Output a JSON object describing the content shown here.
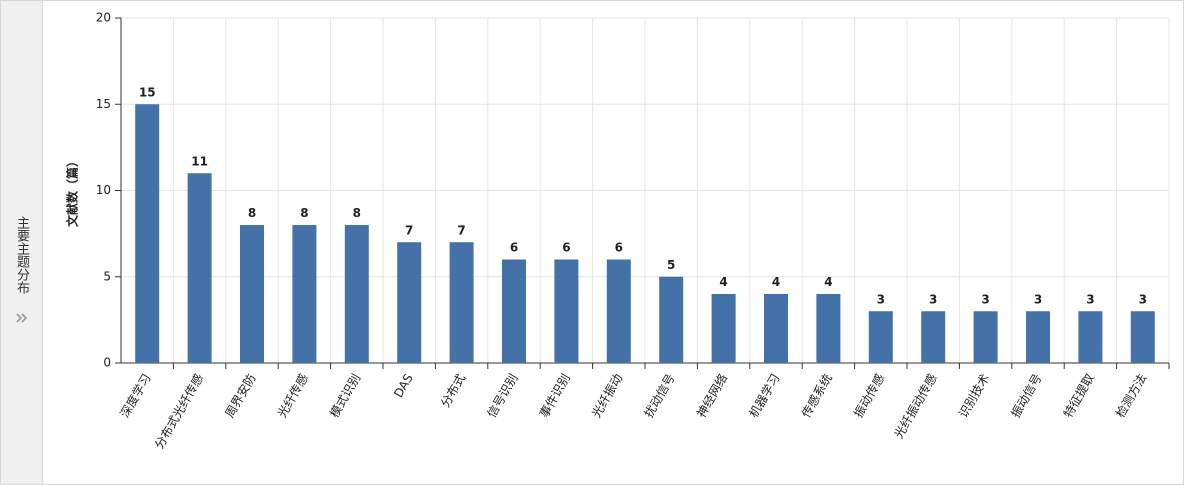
{
  "sidebar": {
    "title": "主要主题分布"
  },
  "chart_data": {
    "type": "bar",
    "y_label": "文献数（篇）",
    "categories": [
      "深度学习",
      "分布式光纤传感",
      "周界安防",
      "光纤传感",
      "模式识别",
      "DAS",
      "分布式",
      "信号识别",
      "事件识别",
      "光纤振动",
      "扰动信号",
      "神经网络",
      "机器学习",
      "传感系统",
      "振动传感",
      "光纤振动传感",
      "识别技术",
      "振动信号",
      "特征提取",
      "检测方法"
    ],
    "values": [
      15,
      11,
      8,
      8,
      8,
      7,
      7,
      6,
      6,
      6,
      5,
      4,
      4,
      4,
      3,
      3,
      3,
      3,
      3,
      3
    ],
    "color": "#4472a8",
    "ylim": [
      0,
      20
    ],
    "yticks": [
      0,
      5,
      10,
      15,
      20
    ],
    "grid": true
  }
}
